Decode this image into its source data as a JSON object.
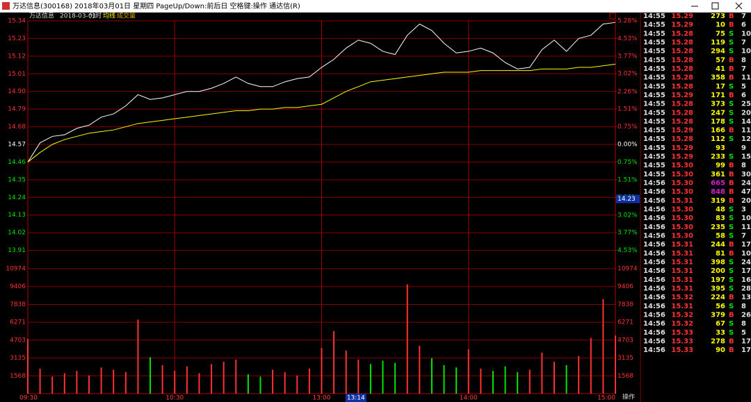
{
  "window": {
    "title": "万达信息(300168) 2018年03月01日 星期四 PageUp/Down:前后日 空格键:操作 通达信(R)"
  },
  "chart_data": {
    "type": "line",
    "stock_name": "万达信息",
    "date": "2018-03-01",
    "period": "分时",
    "categories": [
      "09:30",
      null,
      null,
      null,
      null,
      null,
      null,
      null,
      null,
      null,
      null,
      null,
      "10:30",
      null,
      null,
      null,
      null,
      null,
      null,
      null,
      null,
      null,
      null,
      null,
      "13:00",
      null,
      null,
      null,
      null,
      null,
      null,
      null,
      null,
      null,
      null,
      null,
      "14:00",
      null,
      null,
      null,
      null,
      null,
      null,
      null,
      null,
      null,
      null,
      null,
      "15:00"
    ],
    "series": [
      {
        "color": "#ffffff",
        "values": [
          14.46,
          14.58,
          14.62,
          14.63,
          14.67,
          14.69,
          14.74,
          14.76,
          14.81,
          14.88,
          14.85,
          14.86,
          14.88,
          14.9,
          14.9,
          14.92,
          14.95,
          14.99,
          14.95,
          14.93,
          14.93,
          14.96,
          14.98,
          14.99,
          15.05,
          15.1,
          15.17,
          15.22,
          15.2,
          15.15,
          15.13,
          15.25,
          15.32,
          15.28,
          15.2,
          15.14,
          15.15,
          15.17,
          15.14,
          15.08,
          15.04,
          15.05,
          15.16,
          15.22,
          15.15,
          15.23,
          15.25,
          15.32,
          15.33
        ]
      },
      {
        "name": "均线",
        "color": "#ffff00",
        "values": [
          14.46,
          14.52,
          14.57,
          14.6,
          14.62,
          14.64,
          14.65,
          14.66,
          14.68,
          14.7,
          14.71,
          14.72,
          14.73,
          14.74,
          14.75,
          14.76,
          14.77,
          14.78,
          14.78,
          14.79,
          14.79,
          14.8,
          14.8,
          14.81,
          14.82,
          14.86,
          14.9,
          14.93,
          14.96,
          14.97,
          14.98,
          14.99,
          15.0,
          15.01,
          15.02,
          15.02,
          15.02,
          15.03,
          15.03,
          15.03,
          15.03,
          15.03,
          15.04,
          15.04,
          15.04,
          15.05,
          15.05,
          15.06,
          15.07
        ]
      }
    ],
    "ylim": [
      13.8,
      15.34
    ],
    "yticks": [
      15.34,
      15.23,
      15.12,
      15.01,
      {
        "value": 14.9,
        "label": "14.90"
      },
      14.79,
      14.68,
      14.57,
      14.46,
      14.35,
      14.24,
      14.13,
      14.02,
      13.91
    ],
    "y2lim": [
      -5.28,
      5.28
    ],
    "y2ticks": [
      {
        "value": 5.28,
        "label": "5.28%"
      },
      {
        "value": 4.53,
        "label": "4.53%"
      },
      {
        "value": 3.77,
        "label": "3.77%"
      },
      {
        "value": 3.02,
        "label": "3.02%"
      },
      {
        "value": 2.26,
        "label": "2.26%"
      },
      {
        "value": 1.51,
        "label": "1.51%"
      },
      {
        "value": 0.75,
        "label": "0.75%"
      },
      {
        "value": 0,
        "label": "0.00%"
      },
      {
        "value": -0.75,
        "label": "0.75%"
      },
      {
        "value": -1.51,
        "label": "1.51%"
      },
      {
        "value": -2.26,
        "label": "2.26%"
      },
      {
        "value": -3.02,
        "label": "3.02%"
      },
      {
        "value": -3.77,
        "label": "3.77%"
      },
      {
        "value": -4.53,
        "label": "4.53%"
      }
    ],
    "up_color": "#ff3232",
    "down_color": "#00e600",
    "grid_color": "#8a0000",
    "cursor_time": "13:14",
    "cursor_price": 14.23,
    "volume": {
      "name": "成交量",
      "values": [
        4800,
        2200,
        1500,
        1800,
        2000,
        1600,
        2300,
        2100,
        1900,
        6500,
        3200,
        2500,
        2000,
        2400,
        1800,
        2600,
        2800,
        3000,
        1700,
        1500,
        2100,
        1900,
        1600,
        2200,
        4000,
        5500,
        3800,
        3000,
        2600,
        2900,
        2700,
        9600,
        4200,
        3100,
        2500,
        2300,
        3900,
        2200,
        2000,
        2400,
        1900,
        2100,
        3600,
        2800,
        2500,
        3300,
        4900,
        8300,
        5100
      ],
      "ylim": [
        0,
        10974
      ],
      "yticks": [
        10974,
        9406,
        7838,
        6271,
        4703,
        3135,
        1568
      ]
    }
  },
  "ticks_table": {
    "big_volume_min": 500,
    "big_volume_color": "#d020d0",
    "rows": [
      [
        "14:55",
        "15.29",
        273,
        "B",
        7
      ],
      [
        "14:55",
        "15.29",
        10,
        "B",
        6
      ],
      [
        "14:55",
        "15.28",
        75,
        "S",
        10
      ],
      [
        "14:55",
        "15.28",
        119,
        "S",
        7
      ],
      [
        "14:55",
        "15.28",
        294,
        "S",
        10
      ],
      [
        "14:55",
        "15.28",
        57,
        "B",
        8
      ],
      [
        "14:55",
        "15.28",
        41,
        "B",
        7
      ],
      [
        "14:55",
        "15.28",
        358,
        "B",
        11
      ],
      [
        "14:55",
        "15.28",
        17,
        "S",
        5
      ],
      [
        "14:55",
        "15.29",
        171,
        "B",
        6
      ],
      [
        "14:55",
        "15.28",
        373,
        "S",
        25
      ],
      [
        "14:55",
        "15.28",
        247,
        "S",
        20
      ],
      [
        "14:55",
        "15.28",
        178,
        "S",
        14
      ],
      [
        "14:55",
        "15.29",
        166,
        "B",
        11
      ],
      [
        "14:55",
        "15.28",
        112,
        "S",
        12
      ],
      [
        "14:55",
        "15.29",
        93,
        null,
        9
      ],
      [
        "14:55",
        "15.29",
        233,
        "S",
        15
      ],
      [
        "14:55",
        "15.30",
        99,
        "B",
        8
      ],
      [
        "14:55",
        "15.30",
        361,
        "B",
        30
      ],
      [
        "14:56",
        "15.30",
        665,
        "B",
        24
      ],
      [
        "14:56",
        "15.30",
        848,
        "B",
        47
      ],
      [
        "14:56",
        "15.31",
        319,
        "B",
        20
      ],
      [
        "14:56",
        "15.30",
        48,
        "S",
        3
      ],
      [
        "14:56",
        "15.30",
        83,
        "S",
        10
      ],
      [
        "14:56",
        "15.30",
        235,
        "S",
        11
      ],
      [
        "14:56",
        "15.30",
        58,
        "S",
        7
      ],
      [
        "14:56",
        "15.31",
        244,
        "B",
        17
      ],
      [
        "14:56",
        "15.31",
        81,
        "B",
        10
      ],
      [
        "14:56",
        "15.31",
        398,
        "S",
        24
      ],
      [
        "14:56",
        "15.31",
        200,
        "S",
        17
      ],
      [
        "14:56",
        "15.31",
        197,
        "S",
        16
      ],
      [
        "14:56",
        "15.31",
        395,
        "S",
        28
      ],
      [
        "14:56",
        "15.32",
        224,
        "B",
        13
      ],
      [
        "14:56",
        "15.31",
        56,
        "S",
        8
      ],
      [
        "14:56",
        "15.32",
        379,
        "B",
        26
      ],
      [
        "14:56",
        "15.32",
        67,
        "S",
        8
      ],
      [
        "14:56",
        "15.33",
        33,
        "S",
        5
      ],
      [
        "14:56",
        "15.33",
        278,
        "B",
        17
      ],
      [
        "14:56",
        "15.33",
        90,
        "B",
        17
      ]
    ]
  },
  "footer": {
    "action_label": "操作"
  }
}
